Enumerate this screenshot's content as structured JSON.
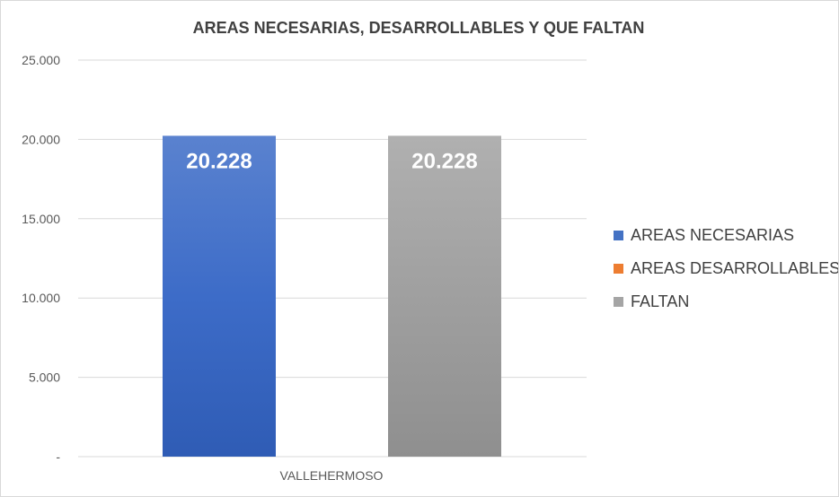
{
  "chart_data": {
    "type": "bar",
    "title": "AREAS NECESARIAS, DESARROLLABLES Y QUE FALTAN",
    "categories": [
      "VALLEHERMOSO"
    ],
    "series": [
      {
        "name": "AREAS NECESARIAS",
        "values": [
          20228
        ],
        "label": "20.228",
        "color": "#4472c4"
      },
      {
        "name": "AREAS DESARROLLABLES",
        "values": [
          0
        ],
        "label": "",
        "color": "#ed7d31"
      },
      {
        "name": "FALTAN",
        "values": [
          20228
        ],
        "label": "20.228",
        "color": "#a5a5a5"
      }
    ],
    "ylim": [
      0,
      25000
    ],
    "yticks": [
      0,
      5000,
      10000,
      15000,
      20000,
      25000
    ],
    "ytick_labels": [
      "-",
      "5.000",
      "10.000",
      "15.000",
      "20.000",
      "25.000"
    ],
    "grid": true,
    "legend": "right"
  }
}
